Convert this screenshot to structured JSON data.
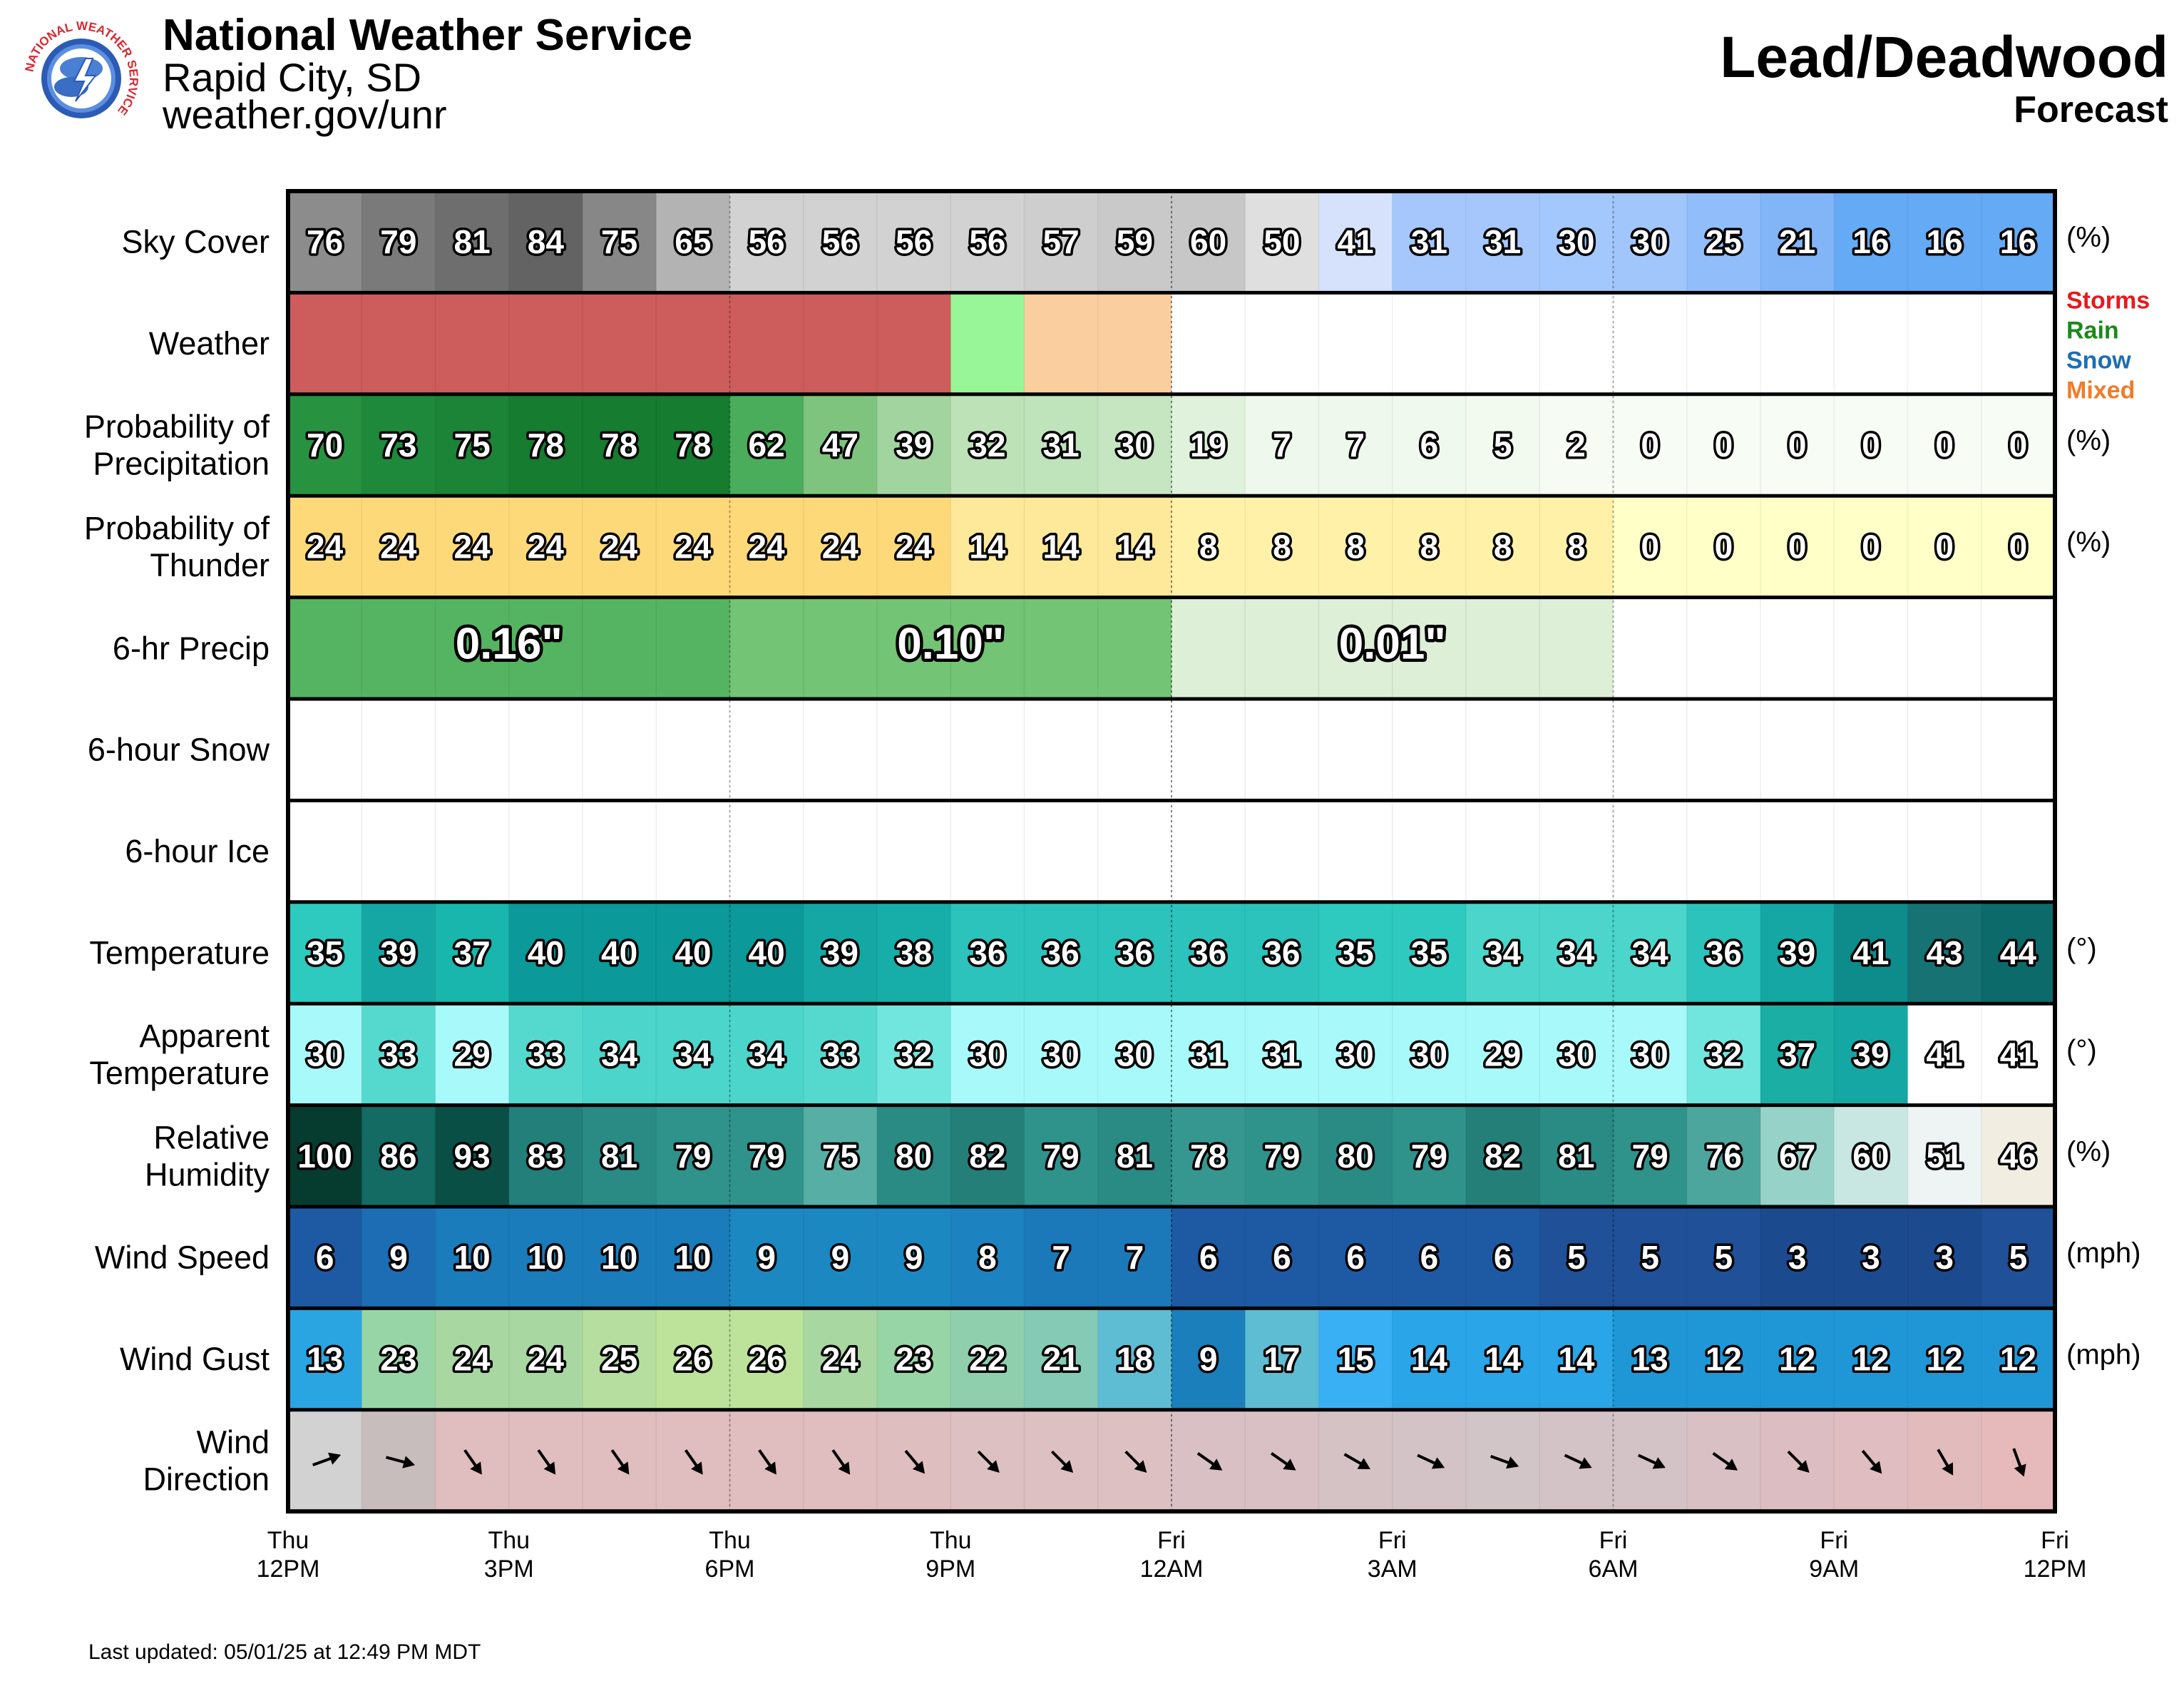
{
  "header": {
    "org_title": "National Weather Service",
    "org_city": "Rapid City, SD",
    "org_url": "weather.gov/unr",
    "location_title": "Lead/Deadwood",
    "location_subtitle": "Forecast",
    "logo_text": "NATIONAL WEATHER SERVICE"
  },
  "footer": {
    "last_updated": "Last updated: 05/01/25 at 12:49 PM MDT"
  },
  "legend": [
    {
      "label": "Storms",
      "color": "#e8191c"
    },
    {
      "label": "Rain",
      "color": "#1a8a1a"
    },
    {
      "label": "Snow",
      "color": "#1c6eb4"
    },
    {
      "label": "Mixed",
      "color": "#f07c28"
    }
  ],
  "chart_data": {
    "type": "table",
    "x_ticks": [
      [
        "Thu",
        "12PM"
      ],
      [
        "Thu",
        "3PM"
      ],
      [
        "Thu",
        "6PM"
      ],
      [
        "Thu",
        "9PM"
      ],
      [
        "Fri",
        "12AM"
      ],
      [
        "Fri",
        "3AM"
      ],
      [
        "Fri",
        "6AM"
      ],
      [
        "Fri",
        "9AM"
      ],
      [
        "Fri",
        "12PM"
      ]
    ],
    "rows": [
      {
        "key": "sky",
        "label": [
          "Sky Cover"
        ],
        "unit": "(%)",
        "values": [
          76,
          79,
          81,
          84,
          75,
          65,
          56,
          56,
          56,
          56,
          57,
          59,
          60,
          50,
          41,
          31,
          31,
          30,
          30,
          25,
          21,
          16,
          16,
          16
        ]
      },
      {
        "key": "weather",
        "label": [
          "Weather"
        ],
        "unit": "",
        "values": [
          "storms",
          "storms",
          "storms",
          "storms",
          "storms",
          "storms",
          "storms",
          "storms",
          "storms",
          "rain",
          "mixed",
          "mixed",
          "",
          "",
          "",
          "",
          "",
          "",
          "",
          "",
          "",
          "",
          "",
          ""
        ]
      },
      {
        "key": "pop",
        "label": [
          "Probability of",
          "Precipitation"
        ],
        "unit": "(%)",
        "values": [
          70,
          73,
          75,
          78,
          78,
          78,
          62,
          47,
          39,
          32,
          31,
          30,
          19,
          7,
          7,
          6,
          5,
          2,
          0,
          0,
          0,
          0,
          0,
          0
        ]
      },
      {
        "key": "thunder",
        "label": [
          "Probability of",
          "Thunder"
        ],
        "unit": "(%)",
        "values": [
          24,
          24,
          24,
          24,
          24,
          24,
          24,
          24,
          24,
          14,
          14,
          14,
          8,
          8,
          8,
          8,
          8,
          8,
          0,
          0,
          0,
          0,
          0,
          0
        ]
      },
      {
        "key": "qpf",
        "label": [
          "6-hr Precip"
        ],
        "unit": "",
        "blocks": [
          {
            "start": 0,
            "span": 6,
            "value": "0.16\""
          },
          {
            "start": 6,
            "span": 6,
            "value": "0.10\""
          },
          {
            "start": 12,
            "span": 6,
            "value": "0.01\""
          },
          {
            "start": 18,
            "span": 6,
            "value": ""
          }
        ]
      },
      {
        "key": "snow",
        "label": [
          "6-hour Snow"
        ],
        "unit": "",
        "blocks": []
      },
      {
        "key": "ice",
        "label": [
          "6-hour Ice"
        ],
        "unit": "",
        "blocks": []
      },
      {
        "key": "temp",
        "label": [
          "Temperature"
        ],
        "unit": "(°)",
        "values": [
          35,
          39,
          37,
          40,
          40,
          40,
          40,
          39,
          38,
          36,
          36,
          36,
          36,
          36,
          35,
          35,
          34,
          34,
          34,
          36,
          39,
          41,
          43,
          44
        ]
      },
      {
        "key": "apparent",
        "label": [
          "Apparent",
          "Temperature"
        ],
        "unit": "(°)",
        "values": [
          30,
          33,
          29,
          33,
          34,
          34,
          34,
          33,
          32,
          30,
          30,
          30,
          31,
          31,
          30,
          30,
          29,
          30,
          30,
          32,
          37,
          39,
          41,
          41
        ]
      },
      {
        "key": "rh",
        "label": [
          "Relative",
          "Humidity"
        ],
        "unit": "(%)",
        "values": [
          100,
          86,
          93,
          83,
          81,
          79,
          79,
          75,
          80,
          82,
          79,
          81,
          78,
          79,
          80,
          79,
          82,
          81,
          79,
          76,
          67,
          60,
          51,
          46
        ]
      },
      {
        "key": "wind",
        "label": [
          "Wind Speed"
        ],
        "unit": "(mph)",
        "values": [
          6,
          9,
          10,
          10,
          10,
          10,
          9,
          9,
          9,
          8,
          7,
          7,
          6,
          6,
          6,
          6,
          6,
          5,
          5,
          5,
          3,
          3,
          3,
          5
        ]
      },
      {
        "key": "gust",
        "label": [
          "Wind Gust"
        ],
        "unit": "(mph)",
        "values": [
          13,
          23,
          24,
          24,
          25,
          26,
          26,
          24,
          23,
          22,
          21,
          18,
          9,
          17,
          15,
          14,
          14,
          14,
          13,
          12,
          12,
          12,
          12,
          12
        ]
      },
      {
        "key": "dir",
        "label": [
          "Wind",
          "Direction"
        ],
        "unit": "",
        "values": [
          250,
          285,
          325,
          325,
          325,
          325,
          325,
          325,
          320,
          315,
          315,
          315,
          305,
          305,
          300,
          295,
          290,
          295,
          295,
          305,
          315,
          320,
          330,
          340
        ]
      }
    ],
    "colors": {
      "sky": [
        "#8c8c8c",
        "#7a7a7a",
        "#6e6e6e",
        "#636363",
        "#878787",
        "#b3b3b3",
        "#d2d2d2",
        "#d2d2d2",
        "#d2d2d2",
        "#d2d2d2",
        "#cecece",
        "#c9c9c9",
        "#c7c7c7",
        "#dfdfdf",
        "#d6e2fb",
        "#a5c7fb",
        "#a5c7fb",
        "#a3c8fd",
        "#a1c6fb",
        "#91befa",
        "#82b5f8",
        "#64aaf5",
        "#64aaf5",
        "#64aaf5"
      ],
      "weather": {
        "storms": "#cd5c5c",
        "rain": "#98f598",
        "mixed": "#fbcea0",
        "": "#ffffff"
      },
      "pop": [
        "#279341",
        "#1e893a",
        "#1b8436",
        "#157c30",
        "#157c30",
        "#157c30",
        "#4aad5b",
        "#7fc47e",
        "#a2d49f",
        "#bde2b8",
        "#bfe3ba",
        "#c5e6c0",
        "#e0f2dc",
        "#eef8ec",
        "#eef8ec",
        "#f0f9ee",
        "#f2faf0",
        "#f6fbf4",
        "#f7fcf5",
        "#f7fcf5",
        "#f7fcf5",
        "#f7fcf5",
        "#f7fcf5",
        "#f7fcf5"
      ],
      "thunder": [
        "#fed97a",
        "#fed97a",
        "#fed97a",
        "#fed97a",
        "#fed97a",
        "#fed97a",
        "#fed97a",
        "#fed97a",
        "#fed97a",
        "#fee89a",
        "#fee89a",
        "#fee89a",
        "#fff2a8",
        "#fff2a8",
        "#fff2a8",
        "#fff2a8",
        "#fff2a8",
        "#fff2a8",
        "#ffffc8",
        "#ffffc8",
        "#ffffc8",
        "#ffffc8",
        "#ffffc8",
        "#ffffc8"
      ],
      "qpf": [
        "#55b462",
        "#73c474",
        "#ddefd7",
        "#ffffff"
      ],
      "temp": [
        "#2ec9bf",
        "#14a7a4",
        "#19b6ad",
        "#0b9999",
        "#0b9999",
        "#0b9999",
        "#0b9999",
        "#14a7a4",
        "#17aeaa",
        "#2bc3bb",
        "#2bc3bb",
        "#2bc3bb",
        "#2bc3bb",
        "#2bc3bb",
        "#2ec9bf",
        "#2ec9bf",
        "#4bd5cb",
        "#4bd5cb",
        "#4bd5cb",
        "#2bc3bb",
        "#14a7a4",
        "#0e8c8c",
        "#177373",
        "#0d6a6a"
      ],
      "apparent": [
        "#a8fafa",
        "#55d9cf",
        "#a8fafa",
        "#55d9cf",
        "#4bd5cb",
        "#4bd5cb",
        "#4bd5cb",
        "#55d9cf",
        "#70e6de",
        "#a8fafa",
        "#a8fafa",
        "#a8fafa",
        "#a8fafa",
        "#a8fafa",
        "#a8fafa",
        "#a8fafa",
        "#a8fafa",
        "#a8fafa",
        "#a8fafa",
        "#70e6de",
        "#1aaea5",
        "#14a7a4",
        "#ffffff",
        "#ffffff"
      ],
      "rh": [
        "#063b30",
        "#136b63",
        "#0a4f45",
        "#237f7a",
        "#2a8a84",
        "#2f928b",
        "#2f928b",
        "#57aea4",
        "#2a8a84",
        "#247f79",
        "#2f928b",
        "#2a8a84",
        "#369790",
        "#2f928b",
        "#2a8a84",
        "#2f928b",
        "#247f79",
        "#2a8a84",
        "#2f928b",
        "#4ca69d",
        "#96d2c8",
        "#c8e7e2",
        "#eef3f3",
        "#f1ede0"
      ],
      "wind": [
        "#1e5aa3",
        "#1c6db3",
        "#1a7cba",
        "#1a7cba",
        "#1a7cba",
        "#1a7cba",
        "#1c88c2",
        "#1c88c2",
        "#1c88c2",
        "#1c82c0",
        "#1c79b9",
        "#1c79b9",
        "#1e5aa3",
        "#1e5aa3",
        "#1e5aa3",
        "#1e5aa3",
        "#1e5aa3",
        "#1f5098",
        "#1f5098",
        "#1f5098",
        "#1c4a8f",
        "#1c4a8f",
        "#1c4a8f",
        "#1f5098"
      ],
      "gust": [
        "#2aa5e1",
        "#98d5a6",
        "#a8d7a2",
        "#a8d7a2",
        "#b5de9f",
        "#bde39a",
        "#bde39a",
        "#a8d7a2",
        "#98d5a6",
        "#8fcfae",
        "#85cab5",
        "#5ebcd3",
        "#1a7fba",
        "#5ebcd3",
        "#39b0f4",
        "#2aa5e8",
        "#2aa5e8",
        "#2aa5e8",
        "#1f97d6",
        "#1f97d6",
        "#1f97d6",
        "#1f97d6",
        "#1f97d6",
        "#1f97d6"
      ],
      "dir": [
        "#d2d2d2",
        "#c8bdbd",
        "#e0bdbe",
        "#e0bdbe",
        "#e0bdbe",
        "#e0bdbe",
        "#e0bdbe",
        "#e0bdbe",
        "#dfbec0",
        "#dcc0c2",
        "#dcc0c2",
        "#dcc0c2",
        "#d8c0c4",
        "#d8c0c4",
        "#d5c2c5",
        "#d3c3c6",
        "#d1c5c7",
        "#d3c3c6",
        "#d3c3c6",
        "#d8c0c4",
        "#dcbdc2",
        "#dfbdc0",
        "#e2bbbd",
        "#e6b9bb"
      ]
    }
  }
}
